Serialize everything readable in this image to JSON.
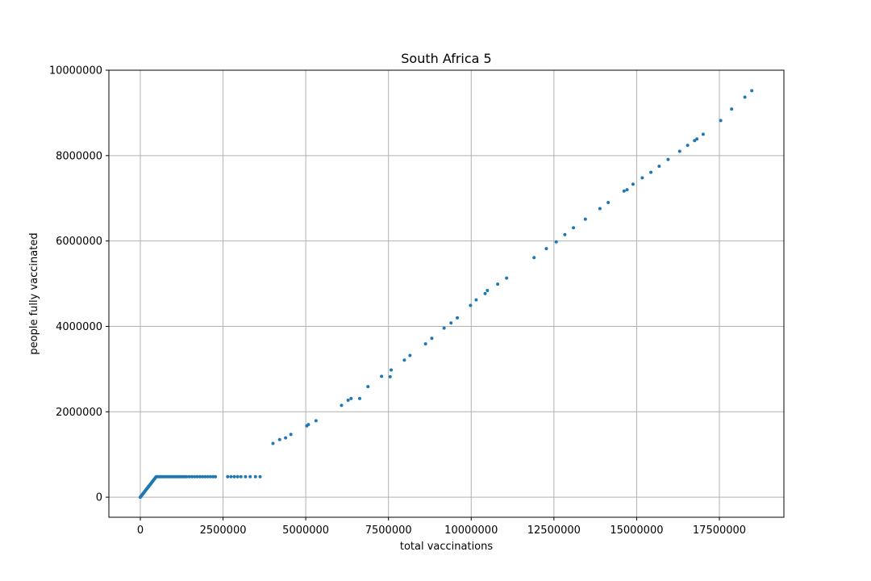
{
  "chart_data": {
    "type": "scatter",
    "title": "South Africa 5",
    "xlabel": "total vaccinations",
    "ylabel": "people fully vaccinated",
    "xlim": [
      -950000,
      19450000
    ],
    "ylim": [
      -470000,
      10000000
    ],
    "xticks": [
      0,
      2500000,
      5000000,
      7500000,
      10000000,
      12500000,
      15000000,
      17500000
    ],
    "xtick_labels": [
      "0",
      "2500000",
      "5000000",
      "7500000",
      "10000000",
      "12500000",
      "15000000",
      "17500000"
    ],
    "yticks": [
      0,
      2000000,
      4000000,
      6000000,
      8000000,
      10000000
    ],
    "ytick_labels": [
      "0",
      "2000000",
      "4000000",
      "6000000",
      "8000000",
      "10000000"
    ],
    "grid": true,
    "marker_color": "#1f77b4",
    "points": [
      [
        0,
        0
      ],
      [
        20000,
        20000
      ],
      [
        40000,
        40000
      ],
      [
        60000,
        60000
      ],
      [
        80000,
        80000
      ],
      [
        100000,
        100000
      ],
      [
        120000,
        120000
      ],
      [
        140000,
        140000
      ],
      [
        160000,
        160000
      ],
      [
        180000,
        180000
      ],
      [
        200000,
        200000
      ],
      [
        220000,
        220000
      ],
      [
        240000,
        240000
      ],
      [
        260000,
        260000
      ],
      [
        280000,
        280000
      ],
      [
        300000,
        300000
      ],
      [
        320000,
        320000
      ],
      [
        340000,
        340000
      ],
      [
        360000,
        360000
      ],
      [
        380000,
        380000
      ],
      [
        400000,
        400000
      ],
      [
        420000,
        420000
      ],
      [
        440000,
        440000
      ],
      [
        460000,
        460000
      ],
      [
        480000,
        478000
      ],
      [
        500000,
        479000
      ],
      [
        540000,
        479000
      ],
      [
        580000,
        479000
      ],
      [
        620000,
        479000
      ],
      [
        660000,
        479000
      ],
      [
        700000,
        479000
      ],
      [
        750000,
        479000
      ],
      [
        800000,
        479000
      ],
      [
        850000,
        479000
      ],
      [
        900000,
        479000
      ],
      [
        950000,
        479000
      ],
      [
        1000000,
        479000
      ],
      [
        1050000,
        479000
      ],
      [
        1100000,
        479000
      ],
      [
        1150000,
        479000
      ],
      [
        1200000,
        479000
      ],
      [
        1250000,
        479000
      ],
      [
        1300000,
        479000
      ],
      [
        1350000,
        479000
      ],
      [
        1400000,
        479000
      ],
      [
        1480000,
        479000
      ],
      [
        1560000,
        479000
      ],
      [
        1640000,
        479000
      ],
      [
        1720000,
        479000
      ],
      [
        1800000,
        479000
      ],
      [
        1880000,
        479000
      ],
      [
        1960000,
        479000
      ],
      [
        2040000,
        479000
      ],
      [
        2120000,
        479000
      ],
      [
        2200000,
        479000
      ],
      [
        2270000,
        479000
      ],
      [
        2640000,
        479000
      ],
      [
        2740000,
        479000
      ],
      [
        2840000,
        479000
      ],
      [
        2940000,
        479000
      ],
      [
        3040000,
        479000
      ],
      [
        3180000,
        479000
      ],
      [
        3320000,
        479000
      ],
      [
        3480000,
        479000
      ],
      [
        3620000,
        479000
      ],
      [
        4010000,
        1260000
      ],
      [
        4210000,
        1350000
      ],
      [
        4390000,
        1390000
      ],
      [
        4550000,
        1470000
      ],
      [
        5030000,
        1670000
      ],
      [
        5080000,
        1700000
      ],
      [
        5310000,
        1790000
      ],
      [
        6080000,
        2150000
      ],
      [
        6280000,
        2270000
      ],
      [
        6370000,
        2310000
      ],
      [
        6630000,
        2310000
      ],
      [
        6880000,
        2590000
      ],
      [
        7290000,
        2830000
      ],
      [
        7550000,
        2820000
      ],
      [
        7580000,
        2980000
      ],
      [
        7980000,
        3210000
      ],
      [
        8150000,
        3320000
      ],
      [
        8620000,
        3590000
      ],
      [
        8810000,
        3720000
      ],
      [
        9180000,
        3960000
      ],
      [
        9390000,
        4080000
      ],
      [
        9580000,
        4200000
      ],
      [
        9980000,
        4490000
      ],
      [
        10150000,
        4620000
      ],
      [
        10420000,
        4770000
      ],
      [
        10490000,
        4840000
      ],
      [
        10800000,
        4990000
      ],
      [
        11070000,
        5130000
      ],
      [
        11900000,
        5610000
      ],
      [
        12270000,
        5820000
      ],
      [
        12570000,
        5980000
      ],
      [
        12830000,
        6150000
      ],
      [
        13090000,
        6310000
      ],
      [
        13450000,
        6510000
      ],
      [
        13890000,
        6760000
      ],
      [
        14140000,
        6900000
      ],
      [
        14620000,
        7170000
      ],
      [
        14710000,
        7200000
      ],
      [
        14890000,
        7330000
      ],
      [
        15170000,
        7480000
      ],
      [
        15430000,
        7610000
      ],
      [
        15680000,
        7750000
      ],
      [
        15950000,
        7910000
      ],
      [
        16300000,
        8100000
      ],
      [
        16540000,
        8240000
      ],
      [
        16750000,
        8350000
      ],
      [
        16820000,
        8390000
      ],
      [
        17010000,
        8500000
      ],
      [
        17540000,
        8820000
      ],
      [
        17870000,
        9090000
      ],
      [
        18270000,
        9370000
      ],
      [
        18480000,
        9520000
      ]
    ]
  }
}
